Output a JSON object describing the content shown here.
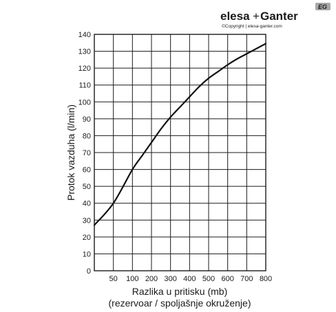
{
  "logo": {
    "brand_left": "elesa",
    "brand_plus": "+",
    "brand_right": "Ganter",
    "badge": "EG",
    "copyright": "©Copyright | elesa-ganter.com"
  },
  "chart_data": {
    "type": "line",
    "title": "",
    "xlabel": "Razlika u pritisku (mb)",
    "xlabel_line2": "(rezervoar / spoljašnje okruženje)",
    "ylabel": "Protok vazduha (l/min)",
    "xlim": [
      0,
      800
    ],
    "ylim": [
      0,
      140
    ],
    "x_ticks": [
      50,
      100,
      200,
      300,
      400,
      500,
      600,
      700,
      800
    ],
    "x_tick_labels": [
      "50",
      "100",
      "200",
      "300",
      "400",
      "500",
      "600",
      "700",
      "800"
    ],
    "x_tick_units": [
      1,
      2,
      3,
      4,
      5,
      6,
      7,
      8,
      9
    ],
    "x_scale": "piecewise: first gridline at 50, then every 100",
    "y_ticks": [
      0,
      10,
      20,
      30,
      40,
      50,
      60,
      70,
      80,
      90,
      100,
      110,
      120,
      130,
      140
    ],
    "y_tick_labels": [
      "0",
      "10",
      "20",
      "30",
      "40",
      "50",
      "60",
      "70",
      "80",
      "90",
      "100",
      "110",
      "120",
      "130",
      "140"
    ],
    "grid": true,
    "legend": "none",
    "series": [
      {
        "x": [
          0,
          50,
          100,
          150,
          200,
          250,
          300,
          350,
          400,
          450,
          500,
          550,
          600,
          650,
          700,
          750,
          800
        ],
        "y": [
          27,
          40,
          60,
          68,
          76,
          84,
          91,
          97,
          103,
          109,
          114,
          118,
          122,
          125.5,
          128.5,
          131.5,
          134.5
        ]
      }
    ],
    "colors": {
      "curve": "#111111",
      "grid": "#1a1a1a",
      "text": "#1a1a1a",
      "logo": "#9a9a9a"
    }
  }
}
